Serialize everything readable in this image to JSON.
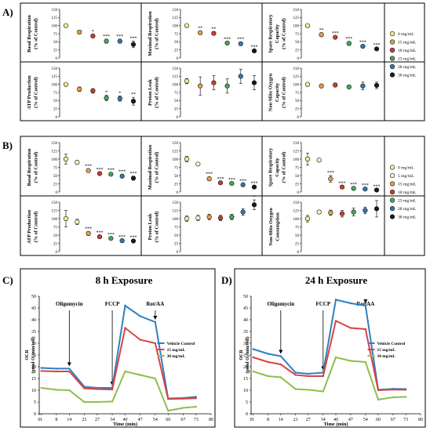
{
  "colors": {
    "vehicle": "#2e7fbf",
    "mid": "#d64541",
    "high": "#8cbf4a",
    "dose": {
      "c0": "#f3ef8a",
      "c5": "#f2f2c8",
      "c15": "#e8a040",
      "c18": "#cf3b33",
      "c23": "#3cab5a",
      "c28": "#2f79b8",
      "c30": "#1a1a1a"
    }
  },
  "chart_data": [
    {
      "panel": "A)",
      "type": "scatter",
      "x_axis": "none",
      "ylim": [
        0,
        150
      ],
      "yticks": [
        "0",
        "25",
        "50",
        "75",
        "100",
        "125",
        "150"
      ],
      "legend": [
        {
          "label": "0 mg/mL",
          "dose": "c0"
        },
        {
          "label": "15 mg/mL",
          "dose": "c15"
        },
        {
          "label": "18 mg/mL",
          "dose": "c18"
        },
        {
          "label": "23 mg/mL",
          "dose": "c23"
        },
        {
          "label": "28 mg/mL",
          "dose": "c28"
        },
        {
          "label": "30 mg/mL",
          "dose": "c30"
        }
      ],
      "subplots": [
        {
          "ylabel": [
            "Basal Respiration",
            "(% of Control)"
          ],
          "points": [
            {
              "dose": "c0",
              "value": 100,
              "err": 3,
              "sig": ""
            },
            {
              "dose": "c15",
              "value": 80,
              "err": 6,
              "sig": ""
            },
            {
              "dose": "c18",
              "value": 68,
              "err": 5,
              "sig": "*"
            },
            {
              "dose": "c23",
              "value": 52,
              "err": 6,
              "sig": "***"
            },
            {
              "dose": "c28",
              "value": 52,
              "err": 6,
              "sig": "***"
            },
            {
              "dose": "c30",
              "value": 42,
              "err": 10,
              "sig": "***"
            }
          ]
        },
        {
          "ylabel": [
            "Maximal Respiration",
            "(% of Control)"
          ],
          "points": [
            {
              "dose": "c0",
              "value": 100,
              "err": 3,
              "sig": ""
            },
            {
              "dose": "c15",
              "value": 78,
              "err": 5,
              "sig": "**"
            },
            {
              "dose": "c18",
              "value": 76,
              "err": 5,
              "sig": "**"
            },
            {
              "dose": "c23",
              "value": 46,
              "err": 4,
              "sig": "***"
            },
            {
              "dose": "c28",
              "value": 44,
              "err": 5,
              "sig": "***"
            },
            {
              "dose": "c30",
              "value": 22,
              "err": 4,
              "sig": "***"
            }
          ]
        },
        {
          "ylabel": [
            "Spare Respiratory",
            "Capacity",
            "(% of Control)"
          ],
          "points": [
            {
              "dose": "c0",
              "value": 100,
              "err": 3,
              "sig": ""
            },
            {
              "dose": "c15",
              "value": 72,
              "err": 6,
              "sig": "**"
            },
            {
              "dose": "c18",
              "value": 64,
              "err": 4,
              "sig": "***"
            },
            {
              "dose": "c23",
              "value": 45,
              "err": 6,
              "sig": "***"
            },
            {
              "dose": "c28",
              "value": 36,
              "err": 4,
              "sig": "***"
            },
            {
              "dose": "c30",
              "value": 28,
              "err": 4,
              "sig": "***"
            }
          ]
        },
        {
          "ylabel": [
            "ATP Production",
            "(% of Control)"
          ],
          "points": [
            {
              "dose": "c0",
              "value": 100,
              "err": 3,
              "sig": ""
            },
            {
              "dose": "c15",
              "value": 85,
              "err": 7,
              "sig": ""
            },
            {
              "dose": "c18",
              "value": 80,
              "err": 7,
              "sig": ""
            },
            {
              "dose": "c23",
              "value": 58,
              "err": 8,
              "sig": "*"
            },
            {
              "dose": "c28",
              "value": 56,
              "err": 8,
              "sig": "*"
            },
            {
              "dose": "c30",
              "value": 48,
              "err": 12,
              "sig": "**"
            }
          ]
        },
        {
          "ylabel": [
            "Proton Leak",
            "(% of Control)"
          ],
          "points": [
            {
              "dose": "c0",
              "value": 110,
              "err": 8,
              "sig": ""
            },
            {
              "dose": "c15",
              "value": 95,
              "err": 28,
              "sig": ""
            },
            {
              "dose": "c18",
              "value": 105,
              "err": 22,
              "sig": ""
            },
            {
              "dose": "c23",
              "value": 95,
              "err": 22,
              "sig": ""
            },
            {
              "dose": "c28",
              "value": 125,
              "err": 22,
              "sig": ""
            },
            {
              "dose": "c30",
              "value": 105,
              "err": 22,
              "sig": ""
            }
          ]
        },
        {
          "ylabel": [
            "Non-Mito Oxygen",
            "Capacity",
            "(% of Control)"
          ],
          "points": [
            {
              "dose": "c0",
              "value": 100,
              "err": 5,
              "sig": ""
            },
            {
              "dose": "c15",
              "value": 95,
              "err": 6,
              "sig": ""
            },
            {
              "dose": "c18",
              "value": 98,
              "err": 6,
              "sig": ""
            },
            {
              "dose": "c23",
              "value": 92,
              "err": 5,
              "sig": ""
            },
            {
              "dose": "c28",
              "value": 95,
              "err": 12,
              "sig": ""
            },
            {
              "dose": "c30",
              "value": 97,
              "err": 10,
              "sig": ""
            }
          ]
        }
      ]
    },
    {
      "panel": "B)",
      "type": "scatter",
      "x_axis": "none",
      "ylim": [
        0,
        150
      ],
      "yticks": [
        "0",
        "25",
        "50",
        "75",
        "100",
        "125",
        "150"
      ],
      "legend": [
        {
          "label": "0 mg/mL",
          "dose": "c0"
        },
        {
          "label": "5 mg/mL",
          "dose": "c5"
        },
        {
          "label": "15 mg/mL",
          "dose": "c15"
        },
        {
          "label": "18 mg/mL",
          "dose": "c18"
        },
        {
          "label": "23 mg/mL",
          "dose": "c23"
        },
        {
          "label": "28 mg/mL",
          "dose": "c28"
        },
        {
          "label": "30 mg/mL",
          "dose": "c30"
        }
      ],
      "subplots": [
        {
          "ylabel": [
            "Basal Respiration",
            "(% of Control)"
          ],
          "points": [
            {
              "dose": "c0",
              "value": 100,
              "err": 15,
              "sig": ""
            },
            {
              "dose": "c5",
              "value": 90,
              "err": 6,
              "sig": ""
            },
            {
              "dose": "c15",
              "value": 65,
              "err": 5,
              "sig": "***"
            },
            {
              "dose": "c18",
              "value": 56,
              "err": 4,
              "sig": "***"
            },
            {
              "dose": "c23",
              "value": 54,
              "err": 4,
              "sig": "***"
            },
            {
              "dose": "c28",
              "value": 48,
              "err": 5,
              "sig": "***"
            },
            {
              "dose": "c30",
              "value": 42,
              "err": 6,
              "sig": "***"
            }
          ]
        },
        {
          "ylabel": [
            "Maximal Respiration",
            "(% of Control)"
          ],
          "points": [
            {
              "dose": "c0",
              "value": 100,
              "err": 8,
              "sig": ""
            },
            {
              "dose": "c5",
              "value": 85,
              "err": 4,
              "sig": ""
            },
            {
              "dose": "c15",
              "value": 40,
              "err": 6,
              "sig": "***"
            },
            {
              "dose": "c18",
              "value": 28,
              "err": 3,
              "sig": "***"
            },
            {
              "dose": "c23",
              "value": 26,
              "err": 3,
              "sig": "***"
            },
            {
              "dose": "c28",
              "value": 22,
              "err": 3,
              "sig": "***"
            },
            {
              "dose": "c30",
              "value": 15,
              "err": 3,
              "sig": "***"
            }
          ]
        },
        {
          "ylabel": [
            "Spare Respiratory",
            "Capacity",
            "(% of Control)"
          ],
          "points": [
            {
              "dose": "c0",
              "value": 100,
              "err": 18,
              "sig": ""
            },
            {
              "dose": "c5",
              "value": 97,
              "err": 3,
              "sig": ""
            },
            {
              "dose": "c15",
              "value": 40,
              "err": 10,
              "sig": "***"
            },
            {
              "dose": "c18",
              "value": 15,
              "err": 3,
              "sig": "***"
            },
            {
              "dose": "c23",
              "value": 11,
              "err": 3,
              "sig": "***"
            },
            {
              "dose": "c28",
              "value": 9,
              "err": 3,
              "sig": "***"
            },
            {
              "dose": "c30",
              "value": 6,
              "err": 2,
              "sig": "***"
            }
          ]
        },
        {
          "ylabel": [
            "ATP Production",
            "(% of Control)"
          ],
          "points": [
            {
              "dose": "c0",
              "value": 100,
              "err": 25,
              "sig": ""
            },
            {
              "dose": "c5",
              "value": 90,
              "err": 8,
              "sig": ""
            },
            {
              "dose": "c15",
              "value": 55,
              "err": 6,
              "sig": "***"
            },
            {
              "dose": "c18",
              "value": 45,
              "err": 4,
              "sig": "***"
            },
            {
              "dose": "c23",
              "value": 40,
              "err": 3,
              "sig": "***"
            },
            {
              "dose": "c28",
              "value": 33,
              "err": 3,
              "sig": "***"
            },
            {
              "dose": "c30",
              "value": 32,
              "err": 3,
              "sig": "***"
            }
          ]
        },
        {
          "ylabel": [
            "Proton Leak",
            "(% of Control)"
          ],
          "points": [
            {
              "dose": "c0",
              "value": 100,
              "err": 8,
              "sig": ""
            },
            {
              "dose": "c5",
              "value": 102,
              "err": 8,
              "sig": ""
            },
            {
              "dose": "c15",
              "value": 105,
              "err": 8,
              "sig": ""
            },
            {
              "dose": "c18",
              "value": 102,
              "err": 8,
              "sig": ""
            },
            {
              "dose": "c23",
              "value": 105,
              "err": 8,
              "sig": ""
            },
            {
              "dose": "c28",
              "value": 120,
              "err": 10,
              "sig": ""
            },
            {
              "dose": "c30",
              "value": 142,
              "err": 15,
              "sig": "*"
            }
          ]
        },
        {
          "ylabel": [
            "Non-Mito Oxygen",
            "Consumption"
          ],
          "points": [
            {
              "dose": "c0",
              "value": 100,
              "err": 10,
              "sig": ""
            },
            {
              "dose": "c5",
              "value": 120,
              "err": 5,
              "sig": ""
            },
            {
              "dose": "c15",
              "value": 118,
              "err": 8,
              "sig": ""
            },
            {
              "dose": "c18",
              "value": 115,
              "err": 10,
              "sig": ""
            },
            {
              "dose": "c23",
              "value": 120,
              "err": 12,
              "sig": ""
            },
            {
              "dose": "c28",
              "value": 125,
              "err": 10,
              "sig": ""
            },
            {
              "dose": "c30",
              "value": 130,
              "err": 25,
              "sig": ""
            }
          ]
        }
      ]
    },
    {
      "panel": "C)",
      "type": "line",
      "title": "8 h Exposure",
      "xlabel": "Time (min)",
      "ylabel": [
        "OCR",
        "(pmol O₂/min/cell)"
      ],
      "xlim": [
        0,
        80
      ],
      "ylim": [
        0,
        50
      ],
      "xticks": [
        "0",
        "1",
        "8",
        "14",
        "21",
        "27",
        "34",
        "40",
        "47",
        "54",
        "60",
        "67",
        "73",
        "80"
      ],
      "yticks": [
        "0",
        "5",
        "10",
        "15",
        "20",
        "25",
        "30",
        "35",
        "40",
        "45",
        "50"
      ],
      "annotations": [
        {
          "label": "Oligomycin",
          "x": 14
        },
        {
          "label": "FCCP",
          "x": 34
        },
        {
          "label": "Rot/AA",
          "x": 54
        }
      ],
      "x": [
        1,
        8,
        14,
        21,
        27,
        34,
        40,
        47,
        54,
        60,
        67,
        73
      ],
      "series": [
        {
          "name": "Vehicle Control",
          "color_key": "vehicle",
          "values": [
            19.5,
            19.2,
            19.2,
            11.5,
            11.0,
            11.0,
            46.0,
            41.5,
            39.0,
            6.5,
            6.7,
            7.2
          ]
        },
        {
          "name": "15 mg/mL",
          "color_key": "mid",
          "values": [
            18.2,
            18.0,
            18.0,
            10.8,
            10.5,
            10.3,
            36.5,
            31.5,
            30.0,
            6.3,
            6.4,
            6.6
          ]
        },
        {
          "name": "30 mg/mL",
          "color_key": "high",
          "values": [
            11.0,
            10.2,
            10.0,
            5.0,
            5.0,
            5.2,
            18.0,
            16.5,
            15.0,
            1.3,
            2.5,
            3.0
          ]
        }
      ]
    },
    {
      "panel": "D)",
      "type": "line",
      "title": "24 h Exposure",
      "xlabel": "Time (min)",
      "ylabel": [
        "OCR",
        "(pmol O₂/min/cell)"
      ],
      "xlim": [
        0,
        80
      ],
      "ylim": [
        0,
        50
      ],
      "xticks": [
        "0",
        "1",
        "8",
        "14",
        "21",
        "27",
        "34",
        "40",
        "47",
        "54",
        "60",
        "67",
        "73",
        "80"
      ],
      "yticks": [
        "0",
        "5",
        "10",
        "15",
        "20",
        "25",
        "30",
        "35",
        "40",
        "45",
        "50"
      ],
      "annotations": [
        {
          "label": "Oligomycin",
          "x": 14
        },
        {
          "label": "FCCP",
          "x": 34
        },
        {
          "label": "Rot/AA",
          "x": 54
        }
      ],
      "x": [
        1,
        8,
        14,
        21,
        27,
        34,
        40,
        47,
        54,
        60,
        67,
        73
      ],
      "series": [
        {
          "name": "Vehicle Control",
          "color_key": "vehicle",
          "values": [
            27.5,
            25.5,
            24.5,
            17.5,
            17.0,
            17.5,
            48.5,
            47.0,
            46.0,
            10.2,
            10.6,
            10.5
          ]
        },
        {
          "name": "15 mg/mL",
          "color_key": "mid",
          "values": [
            24.0,
            22.0,
            21.0,
            16.5,
            16.0,
            16.0,
            39.5,
            36.5,
            36.0,
            10.0,
            10.3,
            10.2
          ]
        },
        {
          "name": "30 mg/mL",
          "color_key": "high",
          "values": [
            18.0,
            16.0,
            15.5,
            10.5,
            10.2,
            9.5,
            24.0,
            22.5,
            22.0,
            6.0,
            7.0,
            7.2
          ]
        }
      ]
    }
  ]
}
